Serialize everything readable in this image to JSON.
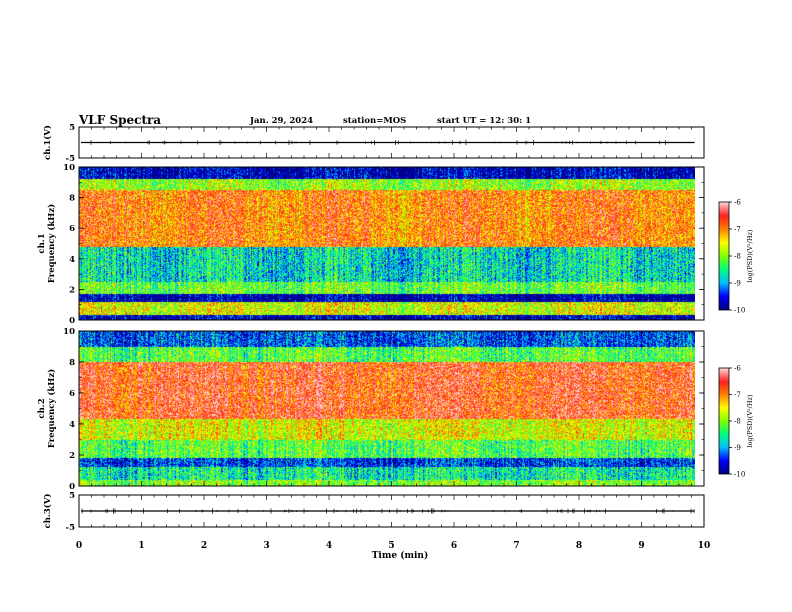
{
  "header": {
    "title": "VLF Spectra",
    "date": "Jan. 29, 2024",
    "station": "station=MOS",
    "start": "start UT =  12: 30: 1"
  },
  "chart_data": [
    {
      "type": "line",
      "name": "ch1-waveform",
      "ylabel": "ch.1(V)",
      "ylim": [
        -5,
        5
      ],
      "yticks": [
        "5",
        "-5"
      ],
      "xlim": [
        0,
        10
      ],
      "baseline": 0,
      "x_extent": [
        0,
        9.85
      ]
    },
    {
      "type": "heatmap",
      "name": "ch1-spectrogram",
      "ylabel": "ch.1\nFrequency (kHz)",
      "ylim": [
        0,
        10
      ],
      "yticks": [
        "0",
        "2",
        "4",
        "6",
        "8",
        "10"
      ],
      "xlim": [
        0,
        10
      ],
      "x_extent": [
        0,
        9.85
      ],
      "colorbar": {
        "label": "log(PSD)(V²/Hz)",
        "range": [
          -10,
          -6
        ],
        "ticks": [
          "-6",
          "-7",
          "-8",
          "-9",
          "-10"
        ]
      },
      "bands": [
        {
          "from": 0,
          "to": 0.3,
          "level": -9.8
        },
        {
          "from": 0.3,
          "to": 1.2,
          "level": -7.6
        },
        {
          "from": 1.2,
          "to": 1.7,
          "level": -9.9
        },
        {
          "from": 1.7,
          "to": 2.5,
          "level": -8.1
        },
        {
          "from": 2.5,
          "to": 4.8,
          "level": -8.7
        },
        {
          "from": 4.8,
          "to": 8.5,
          "level": -6.9
        },
        {
          "from": 8.5,
          "to": 9.2,
          "level": -7.9
        },
        {
          "from": 9.2,
          "to": 10,
          "level": -9.8
        }
      ]
    },
    {
      "type": "heatmap",
      "name": "ch2-spectrogram",
      "ylabel": "ch.2\nFrequency (kHz)",
      "ylim": [
        0,
        10
      ],
      "yticks": [
        "0",
        "2",
        "4",
        "6",
        "8",
        "10"
      ],
      "xlim": [
        0,
        10
      ],
      "x_extent": [
        0,
        9.85
      ],
      "colorbar": {
        "label": "log(PSD)(V²/Hz)",
        "range": [
          -10,
          -6
        ],
        "ticks": [
          "-6",
          "-7",
          "-8",
          "-9",
          "-10"
        ]
      },
      "bands": [
        {
          "from": 0,
          "to": 0.4,
          "level": -8.0
        },
        {
          "from": 0.4,
          "to": 1.2,
          "level": -8.6
        },
        {
          "from": 1.2,
          "to": 1.8,
          "level": -9.4
        },
        {
          "from": 1.8,
          "to": 3.0,
          "level": -8.2
        },
        {
          "from": 3.0,
          "to": 4.3,
          "level": -7.6
        },
        {
          "from": 4.3,
          "to": 8.0,
          "level": -6.6
        },
        {
          "from": 8.0,
          "to": 9.0,
          "level": -8.2
        },
        {
          "from": 9.0,
          "to": 10,
          "level": -9.3
        }
      ]
    },
    {
      "type": "line",
      "name": "ch3-waveform",
      "ylabel": "ch.3(V)",
      "ylim": [
        -5,
        5
      ],
      "yticks": [
        "5",
        "-5"
      ],
      "xlim": [
        0,
        10
      ],
      "baseline": 0,
      "x_extent": [
        0,
        9.85
      ]
    }
  ],
  "xaxis": {
    "label": "Time (min)",
    "range": [
      0,
      10
    ],
    "ticks": [
      "0",
      "1",
      "2",
      "3",
      "4",
      "5",
      "6",
      "7",
      "8",
      "9",
      "10"
    ]
  },
  "colors": {
    "colormap": [
      "#00007f",
      "#0000ff",
      "#00bfff",
      "#00ff80",
      "#80ff00",
      "#ffff00",
      "#ff8000",
      "#ff2020",
      "#ffd0d0"
    ]
  }
}
